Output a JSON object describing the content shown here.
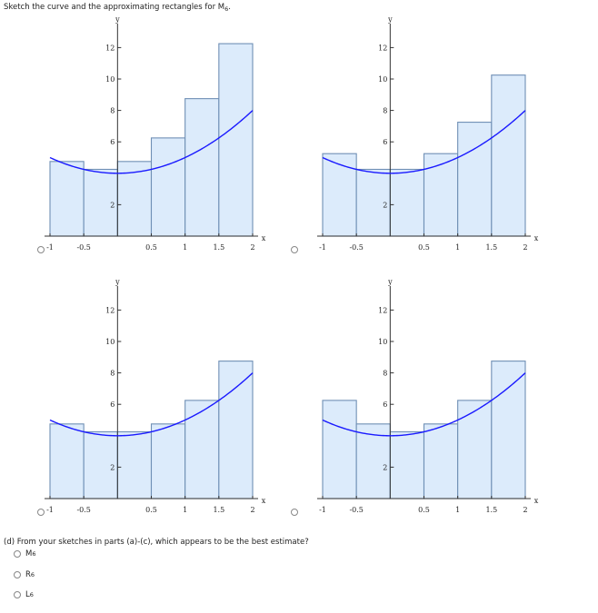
{
  "prompt": {
    "text": "Sketch the curve and the approximating rectangles for M",
    "sub": "6",
    "end": "."
  },
  "question": {
    "text": "(d) From your sketches in parts (a)-(c), which appears to be the best estimate?"
  },
  "choices": [
    {
      "letter": "M",
      "sub": "6"
    },
    {
      "letter": "R",
      "sub": "6"
    },
    {
      "letter": "L",
      "sub": "6"
    }
  ],
  "colors": {
    "curve": "#1a1aff",
    "rect_fill": "#dcebfb",
    "rect_stroke": "#6f8fb5",
    "axis": "#333333"
  },
  "chart_data": [
    {
      "type": "bar",
      "xlabel": "x",
      "ylabel": "y",
      "xlim": [
        -1,
        2
      ],
      "ylim": [
        0,
        12.5
      ],
      "xticks": [
        "-1",
        "-0.5",
        "0.5",
        "1",
        "1.5",
        "2"
      ],
      "yticks": [
        "2",
        "6",
        "8",
        "10",
        "12"
      ],
      "bar_edges": [
        -1,
        -0.5,
        0,
        0.5,
        1,
        1.5,
        2
      ],
      "values": [
        4.75,
        4.25,
        4.75,
        6.25,
        8.75,
        12.25
      ]
    },
    {
      "type": "bar",
      "xlabel": "x",
      "ylabel": "y",
      "xlim": [
        -1,
        2
      ],
      "ylim": [
        0,
        12.5
      ],
      "xticks": [
        "-1",
        "-0.5",
        "0.5",
        "1",
        "1.5",
        "2"
      ],
      "yticks": [
        "2",
        "6",
        "8",
        "10",
        "12"
      ],
      "bar_edges": [
        -1,
        -0.5,
        0,
        0.5,
        1,
        1.5,
        2
      ],
      "values": [
        5.25,
        4.25,
        4.25,
        5.25,
        7.25,
        10.25
      ]
    },
    {
      "type": "bar",
      "xlabel": "x",
      "ylabel": "y",
      "xlim": [
        -1,
        2
      ],
      "ylim": [
        0,
        12.5
      ],
      "xticks": [
        "-1",
        "-0.5",
        "0.5",
        "1",
        "1.5",
        "2"
      ],
      "yticks": [
        "2",
        "6",
        "8",
        "10",
        "12"
      ],
      "bar_edges": [
        -1,
        -0.5,
        0,
        0.5,
        1,
        1.5,
        2
      ],
      "values": [
        4.75,
        4.25,
        4.25,
        4.75,
        6.25,
        8.75
      ]
    },
    {
      "type": "bar",
      "xlabel": "x",
      "ylabel": "y",
      "xlim": [
        -1,
        2
      ],
      "ylim": [
        0,
        12.5
      ],
      "xticks": [
        "-1",
        "-0.5",
        "0.5",
        "1",
        "1.5",
        "2"
      ],
      "yticks": [
        "2",
        "6",
        "8",
        "10",
        "12"
      ],
      "bar_edges": [
        -1,
        -0.5,
        0,
        0.5,
        1,
        1.5,
        2
      ],
      "values": [
        6.25,
        4.75,
        4.25,
        4.75,
        6.25,
        8.75
      ]
    }
  ]
}
